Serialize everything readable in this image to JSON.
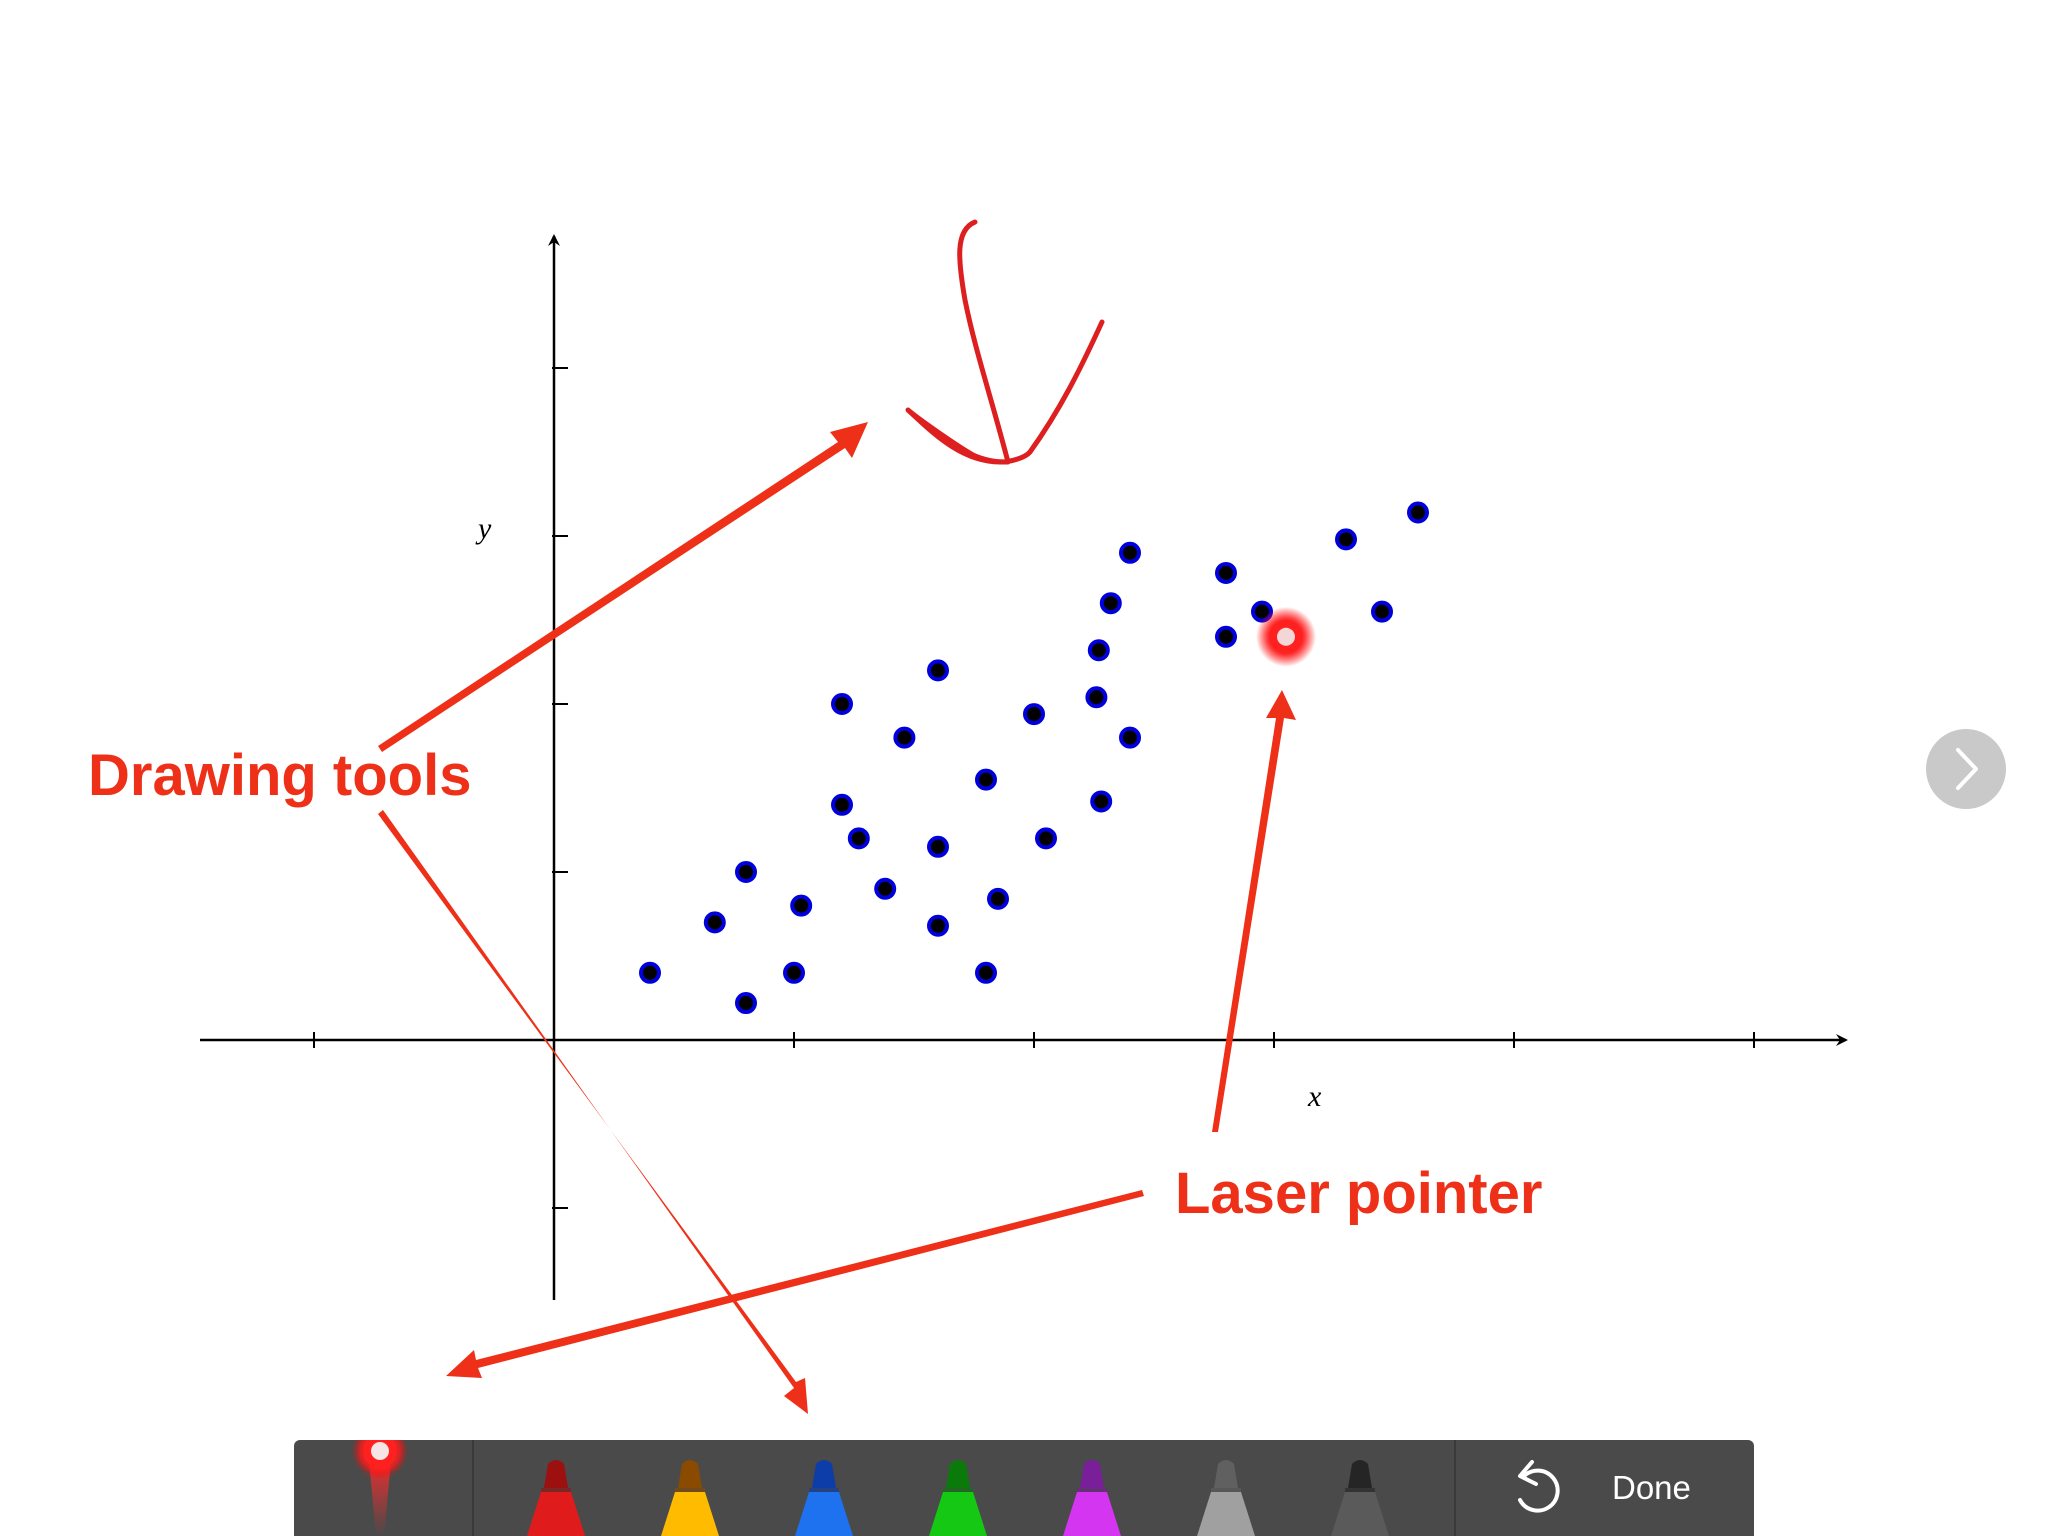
{
  "chart_data": {
    "type": "scatter",
    "xlabel": "x",
    "ylabel": "y",
    "xlim": [
      -1.5,
      5.5
    ],
    "ylim": [
      -1,
      3.5
    ],
    "x_ticks": [
      -1,
      0,
      1,
      2,
      3,
      4,
      5
    ],
    "y_ticks": [
      -1,
      0,
      1,
      2,
      3,
      4
    ],
    "grid": false,
    "points": [
      {
        "x": 0.4,
        "y": 0.4
      },
      {
        "x": 0.8,
        "y": 1.0
      },
      {
        "x": 0.8,
        "y": 0.22
      },
      {
        "x": 0.67,
        "y": 0.7
      },
      {
        "x": 1.0,
        "y": 0.4
      },
      {
        "x": 1.03,
        "y": 0.8
      },
      {
        "x": 1.2,
        "y": 1.4
      },
      {
        "x": 1.27,
        "y": 1.2
      },
      {
        "x": 1.2,
        "y": 2.0
      },
      {
        "x": 1.38,
        "y": 0.9
      },
      {
        "x": 1.6,
        "y": 1.15
      },
      {
        "x": 1.6,
        "y": 0.68
      },
      {
        "x": 1.46,
        "y": 1.8
      },
      {
        "x": 1.6,
        "y": 2.2
      },
      {
        "x": 1.8,
        "y": 1.55
      },
      {
        "x": 1.8,
        "y": 0.4
      },
      {
        "x": 1.85,
        "y": 0.84
      },
      {
        "x": 2.0,
        "y": 1.94
      },
      {
        "x": 2.05,
        "y": 1.2
      },
      {
        "x": 2.28,
        "y": 1.42
      },
      {
        "x": 2.26,
        "y": 2.04
      },
      {
        "x": 2.27,
        "y": 2.32
      },
      {
        "x": 2.4,
        "y": 1.8
      },
      {
        "x": 2.32,
        "y": 2.6
      },
      {
        "x": 2.4,
        "y": 2.9
      },
      {
        "x": 2.8,
        "y": 2.4
      },
      {
        "x": 2.8,
        "y": 2.78
      },
      {
        "x": 2.95,
        "y": 2.55
      },
      {
        "x": 3.3,
        "y": 2.98
      },
      {
        "x": 3.45,
        "y": 2.55
      },
      {
        "x": 3.6,
        "y": 3.14
      }
    ],
    "point_color": "#0000dd"
  },
  "callouts": {
    "drawing_tools": "Drawing tools",
    "laser_pointer": "Laser pointer"
  },
  "laser_dot": {
    "x": 3.05,
    "y": 2.4
  },
  "colors": {
    "callout": "#ee3018",
    "ink": "#dd1f1f",
    "toolbar": "#4a4a4a"
  },
  "toolbar": {
    "tools": [
      {
        "name": "laser-pointer-tool",
        "icon": "laser-pointer-icon"
      },
      {
        "name": "pen-red",
        "color": "#e01b1b",
        "tip": "#9c1010"
      },
      {
        "name": "pen-yellow",
        "color": "#ffbb00",
        "tip": "#8a4a00"
      },
      {
        "name": "pen-blue",
        "color": "#1e72f0",
        "tip": "#0c3da8"
      },
      {
        "name": "pen-green",
        "color": "#14c814",
        "tip": "#0a7a0a"
      },
      {
        "name": "pen-magenta",
        "color": "#d435f0",
        "tip": "#7a1f9a"
      },
      {
        "name": "pen-gray",
        "color": "#a0a0a0",
        "tip": "#606060"
      },
      {
        "name": "pen-darkgray",
        "color": "#5a5a5a",
        "tip": "#252525"
      }
    ],
    "undo_icon": "undo-icon",
    "done_label": "Done"
  },
  "navigation": {
    "next_icon": "chevron-right-icon"
  }
}
